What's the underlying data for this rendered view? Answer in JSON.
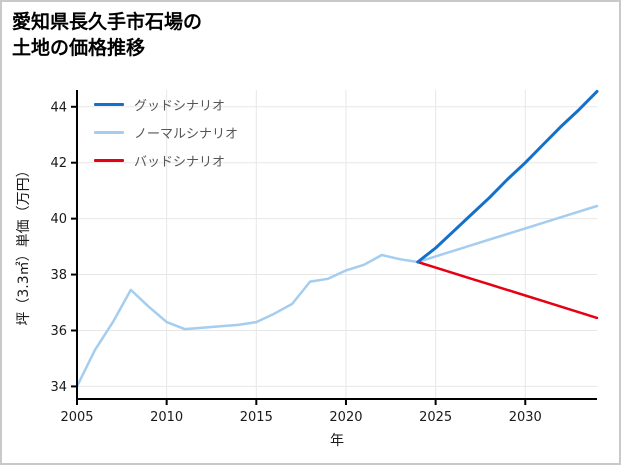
{
  "title_lines": [
    "愛知県長久手市石場の",
    "土地の価格推移"
  ],
  "chart_data": {
    "type": "line",
    "title": "愛知県長久手市石場の土地の価格推移",
    "xlabel": "年",
    "ylabel": "坪（3.3㎡）単価（万円）",
    "xlim": [
      2005,
      2034
    ],
    "ylim": [
      33.55,
      44.6
    ],
    "xticks": [
      2005,
      2010,
      2015,
      2020,
      2025,
      2030
    ],
    "yticks": [
      34,
      36,
      38,
      40,
      42,
      44
    ],
    "grid": true,
    "legend_position": "top-left",
    "series": [
      {
        "name": "グッドシナリオ",
        "color": "#1471ca",
        "x": [
          2024,
          2025,
          2026,
          2027,
          2028,
          2029,
          2030,
          2031,
          2032,
          2033,
          2034
        ],
        "y": [
          38.45,
          38.95,
          39.55,
          40.15,
          40.75,
          41.4,
          42.0,
          42.65,
          43.3,
          43.9,
          44.55
        ]
      },
      {
        "name": "ノーマルシナリオ",
        "color": "#a4cdf0",
        "x": [
          2005,
          2006,
          2007,
          2008,
          2009,
          2010,
          2011,
          2012,
          2013,
          2014,
          2015,
          2016,
          2017,
          2018,
          2019,
          2020,
          2021,
          2022,
          2023,
          2024,
          2025,
          2026,
          2027,
          2028,
          2029,
          2030,
          2031,
          2032,
          2033,
          2034
        ],
        "y": [
          34.0,
          35.3,
          36.3,
          37.45,
          36.85,
          36.3,
          36.05,
          36.1,
          36.15,
          36.2,
          36.3,
          36.6,
          36.95,
          37.75,
          37.85,
          38.15,
          38.35,
          38.7,
          38.55,
          38.45,
          38.65,
          38.85,
          39.05,
          39.25,
          39.45,
          39.65,
          39.85,
          40.05,
          40.25,
          40.45
        ]
      },
      {
        "name": "バッドシナリオ",
        "color": "#e60012",
        "x": [
          2024,
          2025,
          2026,
          2027,
          2028,
          2029,
          2030,
          2031,
          2032,
          2033,
          2034
        ],
        "y": [
          38.45,
          38.25,
          38.05,
          37.85,
          37.65,
          37.45,
          37.25,
          37.05,
          36.85,
          36.65,
          36.45
        ]
      }
    ]
  }
}
